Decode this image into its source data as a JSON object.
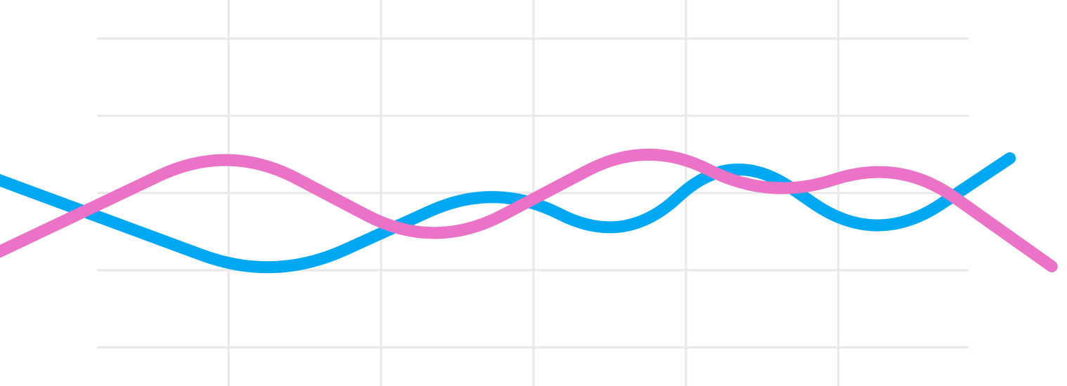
{
  "chart_data": {
    "type": "line",
    "title": "",
    "xlabel": "",
    "ylabel": "",
    "grid": true,
    "legend": "none",
    "smooth": true,
    "xlim": [
      0,
      14
    ],
    "ylim": [
      0,
      5
    ],
    "gridlines_x": [
      3,
      5,
      7,
      9,
      11
    ],
    "gridlines_y": [
      0.5,
      1.5,
      2.5,
      3.5,
      4.5
    ],
    "series": [
      {
        "color": "#00a8f3",
        "x": [
          -0.1,
          3.6,
          6.5,
          8.2,
          9.6,
          11.5,
          13.25
        ],
        "y": [
          2.7,
          1.35,
          2.65,
          1.8,
          3.1,
          1.8,
          2.95
        ]
      },
      {
        "color": "#ea72c7",
        "x": [
          -0.2,
          3.0,
          5.7,
          8.5,
          10.1,
          11.8,
          13.8
        ],
        "y": [
          1.65,
          3.15,
          1.75,
          3.2,
          2.4,
          2.95,
          1.55
        ]
      }
    ]
  }
}
